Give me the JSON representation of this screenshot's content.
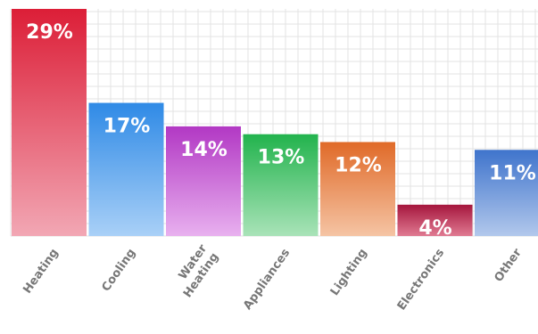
{
  "chart_data": {
    "type": "bar",
    "categories": [
      "Heating",
      "Cooling",
      "Water Heating",
      "Appliances",
      "Lighting",
      "Electronics",
      "Other"
    ],
    "values": [
      29,
      17,
      14,
      13,
      12,
      4,
      11
    ],
    "value_labels": [
      "29%",
      "17%",
      "14%",
      "13%",
      "12%",
      "4%",
      "11%"
    ],
    "unit": "%",
    "ylim": [
      0,
      29
    ],
    "grid": true,
    "legend": "none",
    "colors": [
      [
        "#dc1e37",
        "#f2a7b4"
      ],
      [
        "#2f8ae6",
        "#a9d0f7"
      ],
      [
        "#b238c4",
        "#e8b0ef"
      ],
      [
        "#22b34d",
        "#a9e3b8"
      ],
      [
        "#e06a28",
        "#f5c4a4"
      ],
      [
        "#a5163d",
        "#e07a92"
      ],
      [
        "#3f74cc",
        "#b2c8ec"
      ]
    ],
    "grid_color": "#e3e3e3"
  }
}
